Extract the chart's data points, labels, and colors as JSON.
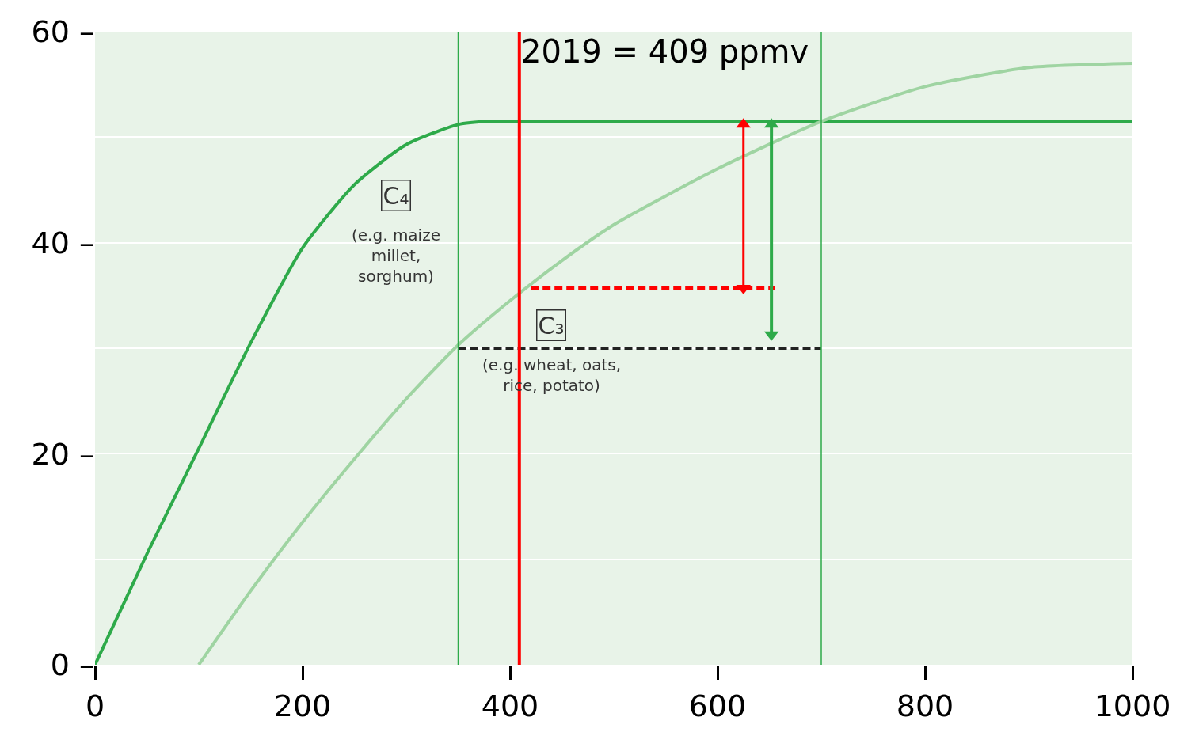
{
  "chart_data": {
    "type": "line",
    "x": [
      0,
      50,
      100,
      150,
      200,
      250,
      300,
      350,
      380,
      450,
      500,
      600,
      700,
      800,
      900,
      1000
    ],
    "series": [
      {
        "color": "#2eaa4a",
        "values": [
          0,
          10.5,
          20.5,
          30.5,
          39.5,
          45.5,
          49.3,
          51.2,
          51.5,
          51.5,
          51.5,
          51.5,
          51.5,
          51.5,
          51.5,
          51.5
        ]
      },
      {
        "color": "#9fd4a2",
        "x": [
          100,
          150,
          200,
          250,
          300,
          350,
          400,
          450,
          500,
          600,
          700,
          800,
          900,
          1000
        ],
        "values": [
          0,
          7,
          13.5,
          19.5,
          25.2,
          30.3,
          34.5,
          38.3,
          41.7,
          47,
          51.5,
          54.8,
          56.6,
          57
        ]
      },
      {
        "color": "#222222",
        "line_style": "dashed",
        "x": [
          350,
          700
        ],
        "values": [
          30,
          30
        ]
      },
      {
        "color": "#ff0000",
        "line_style": "dashed",
        "x": [
          420,
          655
        ],
        "values": [
          35.7,
          35.7
        ]
      },
      {
        "color": "#ff0000",
        "marker": "triangle",
        "x": [
          625,
          625
        ],
        "values": [
          35.7,
          51.2
        ]
      },
      {
        "color": "#2eaa4a",
        "marker": "triangle",
        "x": [
          652,
          652
        ],
        "values": [
          31.3,
          51.2
        ]
      }
    ],
    "xlim": [
      0,
      1000
    ],
    "xticks": [
      0,
      200,
      400,
      600,
      800,
      1000
    ],
    "ylim": [
      0,
      60
    ],
    "yticks": [
      {
        "value": 0,
        "label": "0 –"
      },
      {
        "value": 10,
        "label": null
      },
      {
        "value": 20,
        "label": "20 –"
      },
      {
        "value": 30,
        "label": null
      },
      {
        "value": 40,
        "label": "40 –"
      },
      {
        "value": 50,
        "label": null
      },
      {
        "value": 60,
        "label": "60 –"
      }
    ],
    "grid": "y",
    "marker": "none",
    "line_style": "solid",
    "ref_lines": [
      {
        "axis": "x",
        "value": 350,
        "color": "#2eaa4a"
      },
      {
        "axis": "x",
        "value": 700,
        "color": "#2eaa4a"
      },
      {
        "axis": "x",
        "value": 409,
        "color": "#ff0000",
        "label": "2019 = 409 ppmv"
      }
    ],
    "annotations": [
      {
        "text": "C₄",
        "x": 290,
        "y": 44.5
      },
      "(e.g. maize\nmillet,\nsorghum)",
      {
        "text": "C₃",
        "x": 440,
        "y": 32.2
      },
      "(e.g. wheat, oats,\nrice, potato)"
    ]
  }
}
